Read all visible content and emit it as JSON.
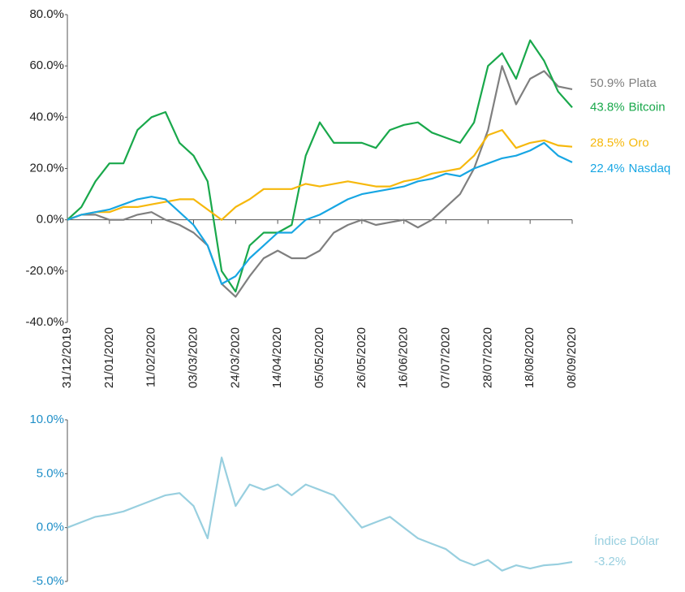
{
  "chart_data": [
    {
      "type": "line",
      "categories": [
        "31/12/2019",
        null,
        null,
        "21/01/2020",
        null,
        null,
        "11/02/2020",
        null,
        null,
        "03/03/2020",
        null,
        null,
        "24/03/2020",
        null,
        null,
        "14/04/2020",
        null,
        null,
        "05/05/2020",
        null,
        null,
        "26/05/2020",
        null,
        null,
        "16/06/2020",
        null,
        null,
        "07/07/2020",
        null,
        null,
        "28/07/2020",
        null,
        null,
        "18/08/2020",
        null,
        null,
        "08/09/2020"
      ],
      "ylim": [
        -40,
        80
      ],
      "yticks": [
        {
          "value": -40,
          "label": "-40.0%"
        },
        {
          "value": -20,
          "label": "-20.0%"
        },
        {
          "value": 0,
          "label": "0.0%"
        },
        {
          "value": 20,
          "label": "20.0%"
        },
        {
          "value": 40,
          "label": "40.0%"
        },
        {
          "value": 60,
          "label": "60.0%"
        },
        {
          "value": 80,
          "label": "80.0%"
        }
      ],
      "series": [
        {
          "name": "Plata",
          "color": "#7f7f7f",
          "end_label": "50.9%",
          "values": [
            0,
            2,
            2,
            0,
            0,
            2,
            3,
            0,
            -2,
            -5,
            -10,
            -25,
            -30,
            -22,
            -15,
            -12,
            -15,
            -15,
            -12,
            -5,
            -2,
            0,
            -2,
            -1,
            0,
            -3,
            0,
            5,
            10,
            20,
            35,
            60,
            45,
            55,
            58,
            52,
            50.9
          ]
        },
        {
          "name": "Bitcoin",
          "color": "#19a84b",
          "end_label": "43.8%",
          "values": [
            0,
            5,
            15,
            22,
            22,
            35,
            40,
            42,
            30,
            25,
            15,
            -20,
            -28,
            -10,
            -5,
            -5,
            -2,
            25,
            38,
            30,
            30,
            30,
            28,
            35,
            37,
            38,
            34,
            32,
            30,
            38,
            60,
            65,
            55,
            70,
            62,
            50,
            43.8
          ]
        },
        {
          "name": "Oro",
          "color": "#f6b80c",
          "end_label": "28.5%",
          "values": [
            0,
            2,
            3,
            3,
            5,
            5,
            6,
            7,
            8,
            8,
            4,
            0,
            5,
            8,
            12,
            12,
            12,
            14,
            13,
            14,
            15,
            14,
            13,
            13,
            15,
            16,
            18,
            19,
            20,
            25,
            33,
            35,
            28,
            30,
            31,
            29,
            28.5
          ]
        },
        {
          "name": "Nasdaq",
          "color": "#17a6e3",
          "end_label": "22.4%",
          "values": [
            0,
            2,
            3,
            4,
            6,
            8,
            9,
            8,
            3,
            -2,
            -10,
            -25,
            -22,
            -15,
            -10,
            -5,
            -5,
            0,
            2,
            5,
            8,
            10,
            11,
            12,
            13,
            15,
            16,
            18,
            17,
            20,
            22,
            24,
            25,
            27,
            30,
            25,
            22.4
          ]
        }
      ]
    },
    {
      "type": "line",
      "ylim": [
        -5,
        10
      ],
      "yticks": [
        {
          "value": -5,
          "label": "-5.0%"
        },
        {
          "value": 0,
          "label": "0.0%"
        },
        {
          "value": 5,
          "label": "5.0%"
        },
        {
          "value": 10,
          "label": "10.0%"
        }
      ],
      "series": [
        {
          "name": "Índice Dólar",
          "color": "#98cfdf",
          "end_label": "-3.2%",
          "values": [
            0,
            0.5,
            1,
            1.2,
            1.5,
            2,
            2.5,
            3,
            3.2,
            2,
            -1,
            6.5,
            2,
            4,
            3.5,
            4,
            3,
            4,
            3.5,
            3,
            1.5,
            0,
            0.5,
            1,
            0,
            -1,
            -1.5,
            -2,
            -3,
            -3.5,
            -3,
            -4,
            -3.5,
            -3.8,
            -3.5,
            -3.4,
            -3.2
          ]
        }
      ]
    }
  ]
}
